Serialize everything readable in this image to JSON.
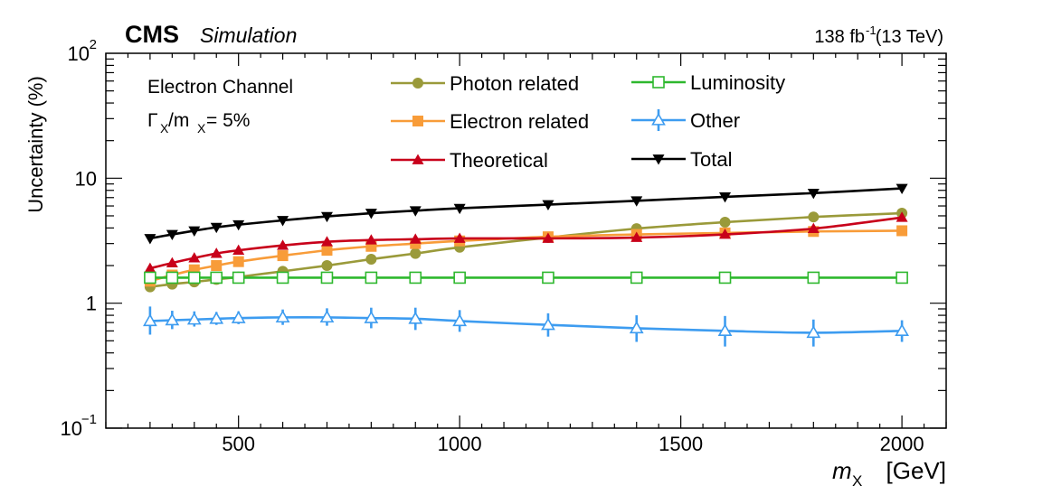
{
  "header": {
    "experiment": "CMS",
    "label": "Simulation",
    "lumi_value": "138 fb",
    "lumi_exp": "-1",
    "energy": "(13 TeV)"
  },
  "annotations": {
    "channel": "Electron Channel",
    "width_gamma": "Γ",
    "width_sub": "X",
    "width_mid": "/m",
    "width_sub2": "X",
    "width_tail": " = 5%"
  },
  "chart_data": {
    "type": "line",
    "title": "",
    "xlabel": "m",
    "xlabel_sub": "X",
    "xlabel_unit": " [GeV]",
    "ylabel": "Uncertainty (%)",
    "xlim": [
      200,
      2100
    ],
    "ylim": [
      0.1,
      100
    ],
    "yscale": "log",
    "x_ticks": [
      500,
      1000,
      1500,
      2000
    ],
    "x_tick_labels": [
      "500",
      "1000",
      "1500",
      "2000"
    ],
    "y_ticks": [
      {
        "value": 0.1,
        "base": "10",
        "exp": "−1"
      },
      {
        "value": 1,
        "base": "1",
        "exp": ""
      },
      {
        "value": 10,
        "base": "10",
        "exp": ""
      },
      {
        "value": 100,
        "base": "10",
        "exp": "2"
      }
    ],
    "grid": false,
    "legend_position": "top",
    "x": [
      300,
      350,
      400,
      450,
      500,
      600,
      700,
      800,
      900,
      1000,
      1200,
      1400,
      1600,
      1800,
      2000
    ],
    "series": [
      {
        "name": "Photon related",
        "key": "photon",
        "color": "#9a9a3a",
        "marker": "circle",
        "values": [
          1.35,
          1.42,
          1.48,
          1.55,
          1.62,
          1.8,
          2.0,
          2.25,
          2.5,
          2.8,
          3.35,
          3.95,
          4.45,
          4.9,
          5.25
        ]
      },
      {
        "name": "Electron related",
        "key": "electron",
        "color": "#f89c39",
        "marker": "square",
        "values": [
          1.5,
          1.68,
          1.85,
          2.0,
          2.15,
          2.4,
          2.65,
          2.85,
          3.0,
          3.15,
          3.4,
          3.55,
          3.65,
          3.75,
          3.8
        ]
      },
      {
        "name": "Theoretical",
        "key": "theoretical",
        "color": "#c8001a",
        "marker": "triangle-up",
        "values": [
          1.9,
          2.1,
          2.3,
          2.5,
          2.65,
          2.9,
          3.1,
          3.2,
          3.25,
          3.3,
          3.3,
          3.35,
          3.55,
          3.95,
          4.85
        ]
      },
      {
        "name": "Luminosity",
        "key": "luminosity",
        "color": "#2eb82e",
        "marker": "open-square",
        "values": [
          1.6,
          1.6,
          1.6,
          1.6,
          1.6,
          1.6,
          1.6,
          1.6,
          1.6,
          1.6,
          1.6,
          1.6,
          1.6,
          1.6,
          1.6
        ]
      },
      {
        "name": "Other",
        "key": "other",
        "color": "#3d9cf0",
        "marker": "open-triangle-up",
        "values": [
          0.72,
          0.73,
          0.74,
          0.75,
          0.76,
          0.77,
          0.77,
          0.76,
          0.75,
          0.72,
          0.67,
          0.63,
          0.6,
          0.58,
          0.6
        ],
        "err_up": [
          0.22,
          0.14,
          0.12,
          0.1,
          0.1,
          0.12,
          0.14,
          0.16,
          0.17,
          0.16,
          0.16,
          0.17,
          0.19,
          0.16,
          0.13
        ],
        "err_down": [
          0.16,
          0.11,
          0.09,
          0.08,
          0.08,
          0.1,
          0.11,
          0.13,
          0.14,
          0.13,
          0.13,
          0.14,
          0.15,
          0.13,
          0.11
        ]
      },
      {
        "name": "Total",
        "key": "total",
        "color": "#000000",
        "marker": "triangle-down",
        "values": [
          3.3,
          3.55,
          3.8,
          4.05,
          4.25,
          4.6,
          4.95,
          5.25,
          5.5,
          5.75,
          6.15,
          6.6,
          7.1,
          7.6,
          8.3
        ]
      }
    ]
  }
}
